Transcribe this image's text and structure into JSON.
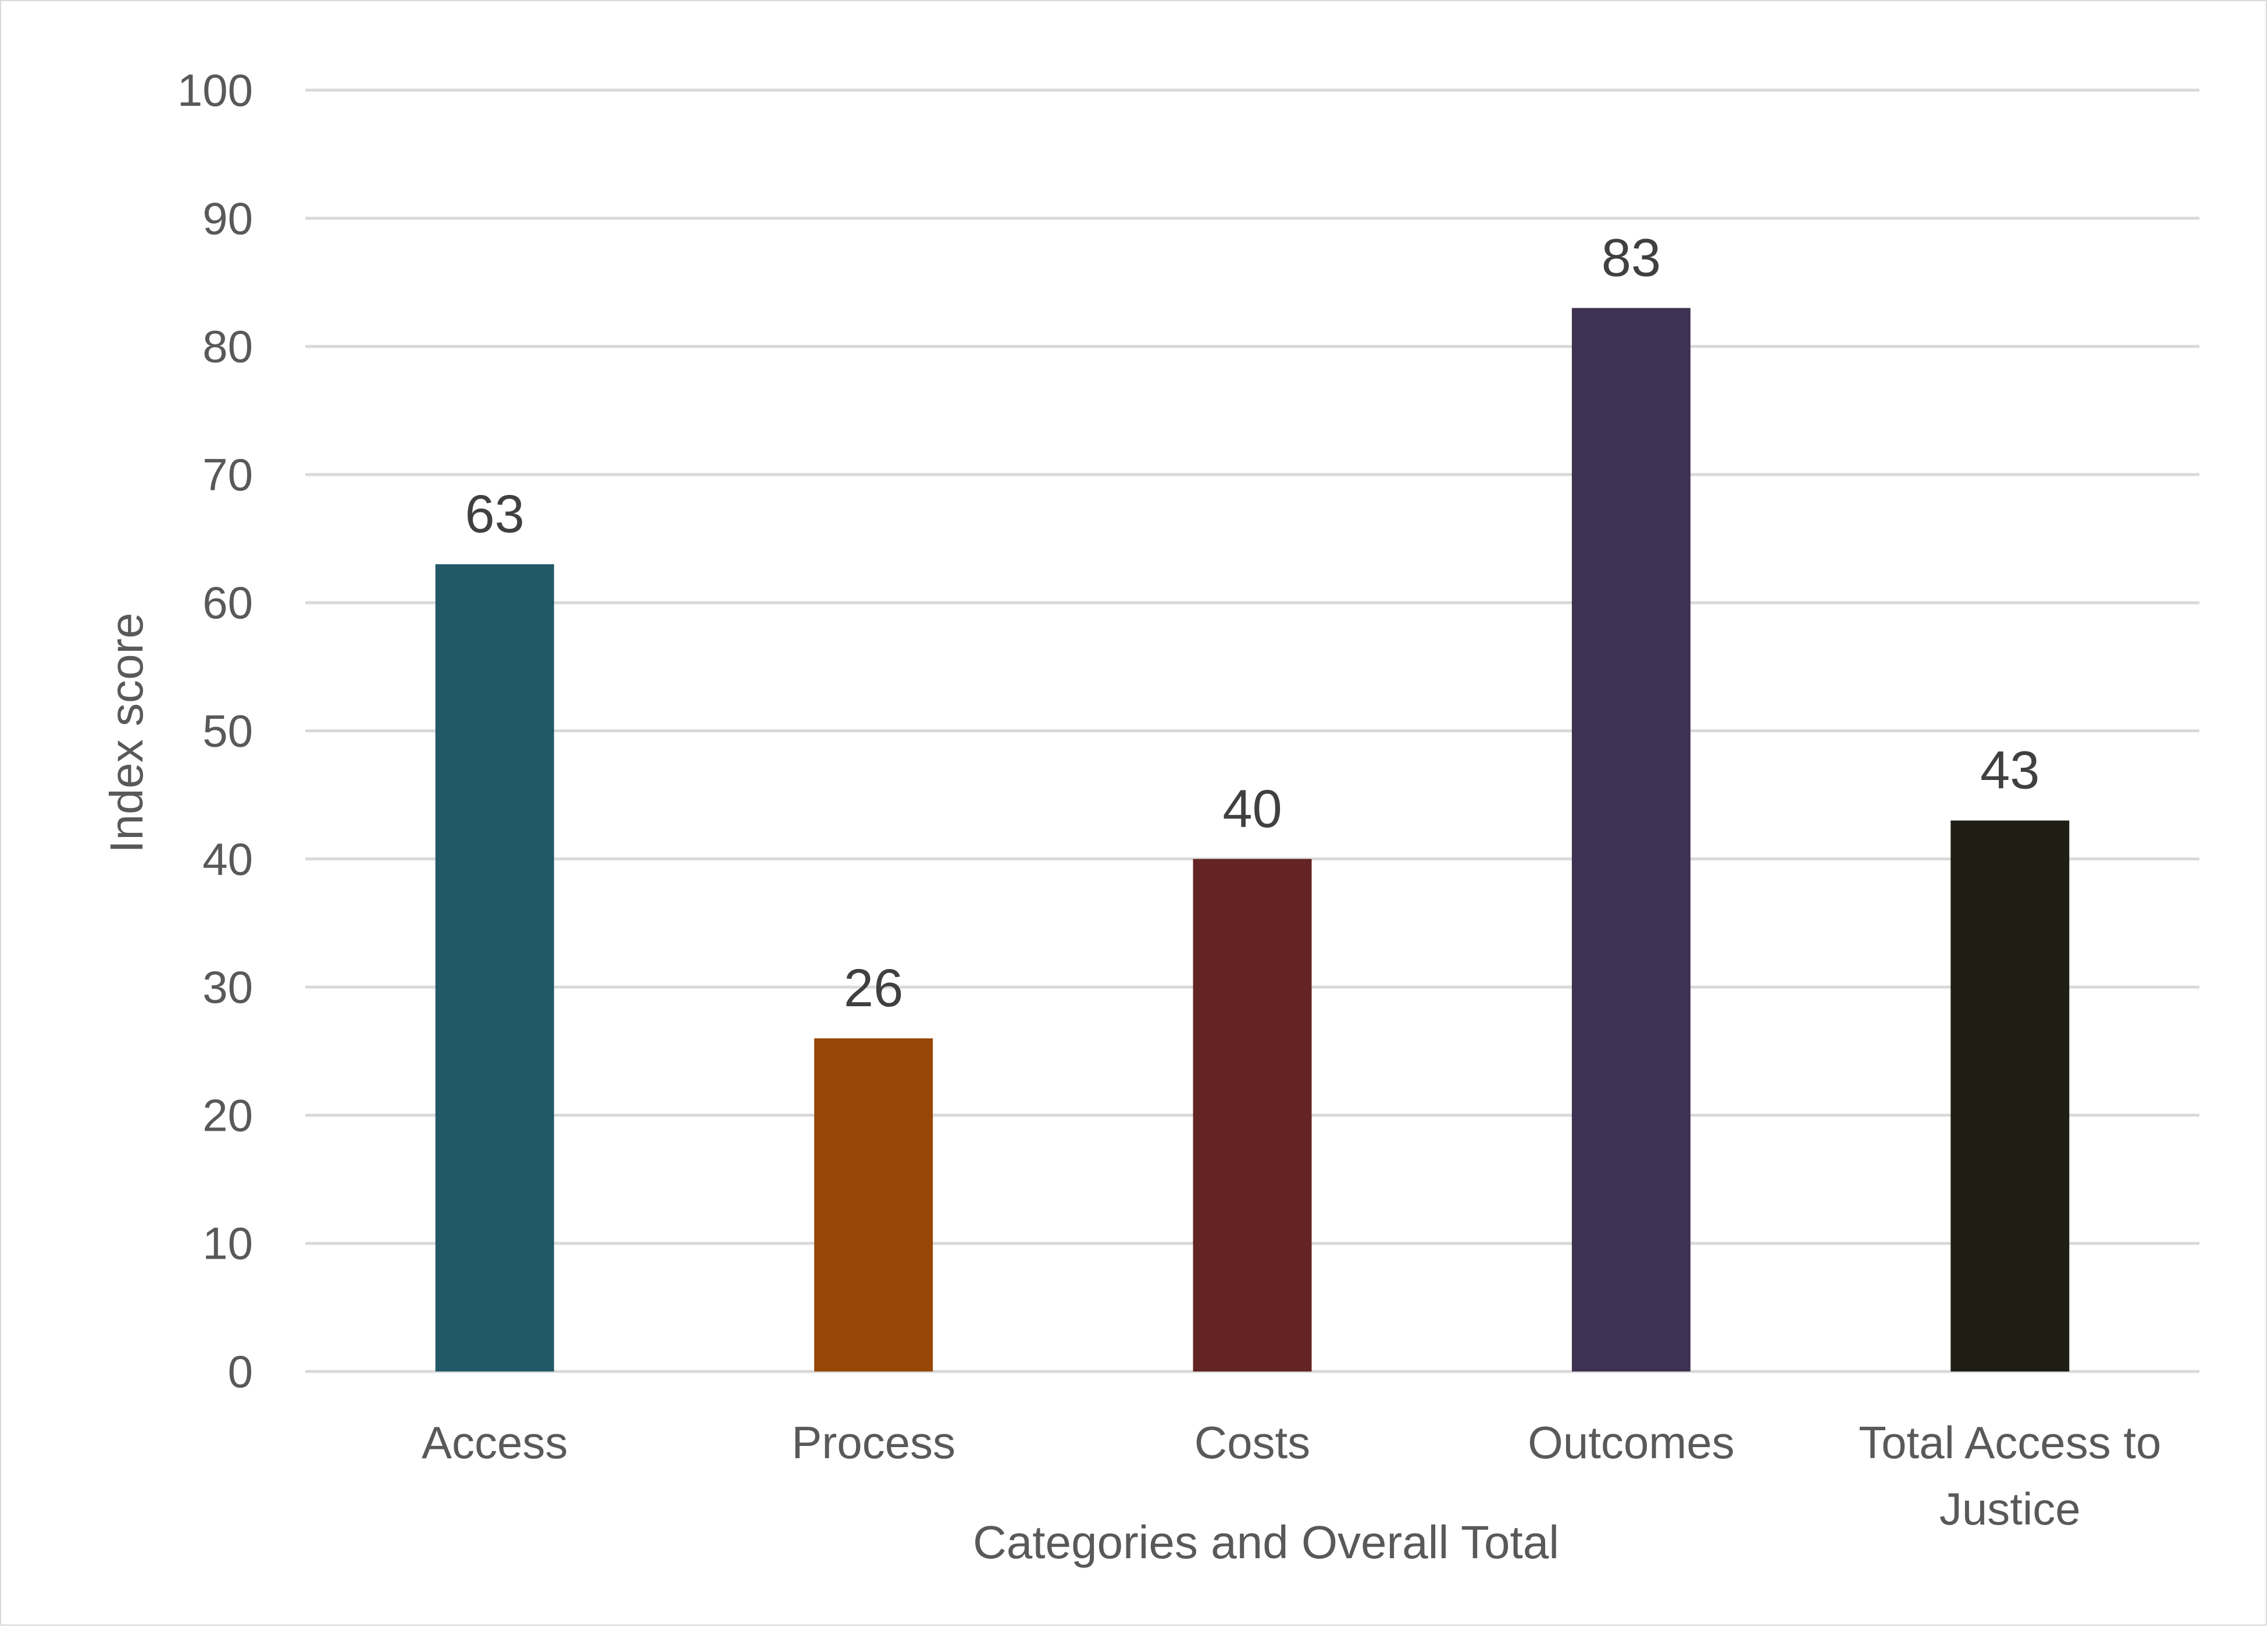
{
  "chart_data": {
    "type": "bar",
    "title": "",
    "xlabel": "Categories and Overall Total",
    "ylabel": "Index score",
    "categories": [
      "Access",
      "Process",
      "Costs",
      "Outcomes",
      "Total Access to Justice"
    ],
    "values": [
      63,
      26,
      40,
      83,
      43
    ],
    "colors": [
      "#215968",
      "#974706",
      "#632423",
      "#3f3151",
      "#1e1e14"
    ],
    "ylim": [
      0,
      100
    ],
    "yticks": [
      0,
      10,
      20,
      30,
      40,
      50,
      60,
      70,
      80,
      90,
      100
    ],
    "grid": true,
    "legend": "none",
    "data_labels": true
  }
}
